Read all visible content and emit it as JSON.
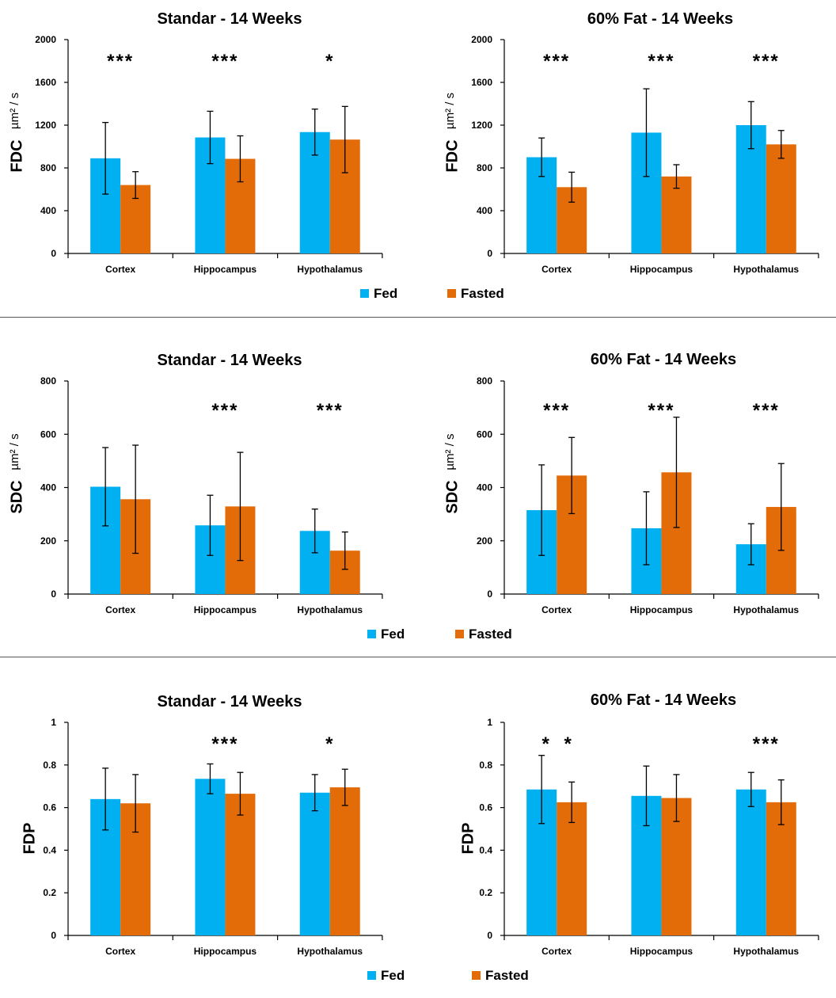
{
  "colors": {
    "fed": "#00B0F0",
    "fasted": "#E36C09",
    "axis": "#000000"
  },
  "legend": {
    "fed": "Fed",
    "fasted": "Fasted"
  },
  "chart_data": [
    {
      "id": "fdc-standard",
      "type": "bar",
      "title": "Standar - 14 Weeks",
      "ylabel_main": "FDC",
      "ylabel_unit": "µm² / s",
      "categories": [
        "Cortex",
        "Hippocampus",
        "Hypothalamus"
      ],
      "ylim": [
        0,
        2000
      ],
      "yticks": [
        "0",
        "400",
        "800",
        "1200",
        "1600",
        "2000"
      ],
      "ytick_values": [
        0,
        400,
        800,
        1200,
        1600,
        2000
      ],
      "series": [
        {
          "name": "Fed",
          "values": [
            890,
            1085,
            1135
          ],
          "err": [
            335,
            245,
            215
          ]
        },
        {
          "name": "Fasted",
          "values": [
            640,
            885,
            1065
          ],
          "err": [
            125,
            215,
            310
          ]
        }
      ],
      "significance": [
        [
          "***"
        ],
        [
          "***"
        ],
        [
          "*"
        ]
      ]
    },
    {
      "id": "fdc-fat",
      "type": "bar",
      "title": "60% Fat - 14 Weeks",
      "ylabel_main": "FDC",
      "ylabel_unit": "µm² / s",
      "categories": [
        "Cortex",
        "Hippocampus",
        "Hypothalamus"
      ],
      "ylim": [
        0,
        2000
      ],
      "yticks": [
        "0",
        "400",
        "800",
        "1200",
        "1600",
        "2000"
      ],
      "ytick_values": [
        0,
        400,
        800,
        1200,
        1600,
        2000
      ],
      "series": [
        {
          "name": "Fed",
          "values": [
            900,
            1130,
            1200
          ],
          "err": [
            180,
            410,
            220
          ]
        },
        {
          "name": "Fasted",
          "values": [
            620,
            720,
            1020
          ],
          "err": [
            140,
            110,
            130
          ]
        }
      ],
      "significance": [
        [
          "***"
        ],
        [
          "***"
        ],
        [
          "***"
        ]
      ]
    },
    {
      "id": "sdc-standard",
      "type": "bar",
      "title": "Standar - 14 Weeks",
      "ylabel_main": "SDC",
      "ylabel_unit": "µm² / s",
      "categories": [
        "Cortex",
        "Hippocampus",
        "Hypothalamus"
      ],
      "ylim": [
        0,
        800
      ],
      "yticks": [
        "0",
        "200",
        "400",
        "600",
        "800"
      ],
      "ytick_values": [
        0,
        200,
        400,
        600,
        800
      ],
      "series": [
        {
          "name": "Fed",
          "values": [
            403,
            258,
            237
          ],
          "err": [
            147,
            113,
            82
          ]
        },
        {
          "name": "Fasted",
          "values": [
            356,
            329,
            163
          ],
          "err": [
            203,
            203,
            70
          ]
        }
      ],
      "significance": [
        [],
        [
          "***"
        ],
        [
          "***"
        ]
      ]
    },
    {
      "id": "sdc-fat",
      "type": "bar",
      "title": "60% Fat - 14 Weeks",
      "ylabel_main": "SDC",
      "ylabel_unit": "µm² / s",
      "categories": [
        "Cortex",
        "Hippocampus",
        "Hypothalamus"
      ],
      "ylim": [
        0,
        800
      ],
      "yticks": [
        "0",
        "200",
        "400",
        "600",
        "800"
      ],
      "ytick_values": [
        0,
        200,
        400,
        600,
        800
      ],
      "series": [
        {
          "name": "Fed",
          "values": [
            315,
            247,
            187
          ],
          "err": [
            170,
            137,
            77
          ]
        },
        {
          "name": "Fasted",
          "values": [
            445,
            457,
            327
          ],
          "err": [
            143,
            207,
            163
          ]
        }
      ],
      "significance": [
        [
          "***"
        ],
        [
          "***"
        ],
        [
          "***"
        ]
      ]
    },
    {
      "id": "fdp-standard",
      "type": "bar",
      "title": "Standar - 14 Weeks",
      "ylabel_main": "FDP",
      "ylabel_unit": "",
      "categories": [
        "Cortex",
        "Hippocampus",
        "Hypothalamus"
      ],
      "ylim": [
        0,
        1
      ],
      "yticks": [
        "0",
        "0.2",
        "0.4",
        "0.6",
        "0.8",
        "1"
      ],
      "ytick_values": [
        0,
        0.2,
        0.4,
        0.6,
        0.8,
        1
      ],
      "series": [
        {
          "name": "Fed",
          "values": [
            0.64,
            0.735,
            0.67
          ],
          "err": [
            0.145,
            0.07,
            0.085
          ]
        },
        {
          "name": "Fasted",
          "values": [
            0.62,
            0.665,
            0.695
          ],
          "err": [
            0.135,
            0.1,
            0.085
          ]
        }
      ],
      "significance": [
        [],
        [
          "***"
        ],
        [
          "*"
        ]
      ]
    },
    {
      "id": "fdp-fat",
      "type": "bar",
      "title": "60% Fat - 14 Weeks",
      "ylabel_main": "FDP",
      "ylabel_unit": "",
      "categories": [
        "Cortex",
        "Hippocampus",
        "Hypothalamus"
      ],
      "ylim": [
        0,
        1
      ],
      "yticks": [
        "0",
        "0.2",
        "0.4",
        "0.6",
        "0.8",
        "1"
      ],
      "ytick_values": [
        0,
        0.2,
        0.4,
        0.6,
        0.8,
        1
      ],
      "series": [
        {
          "name": "Fed",
          "values": [
            0.685,
            0.655,
            0.685
          ],
          "err": [
            0.16,
            0.14,
            0.08
          ]
        },
        {
          "name": "Fasted",
          "values": [
            0.625,
            0.645,
            0.625
          ],
          "err": [
            0.095,
            0.11,
            0.105
          ]
        }
      ],
      "significance": [
        [
          "*",
          "*"
        ],
        [],
        [
          "***"
        ]
      ]
    }
  ]
}
